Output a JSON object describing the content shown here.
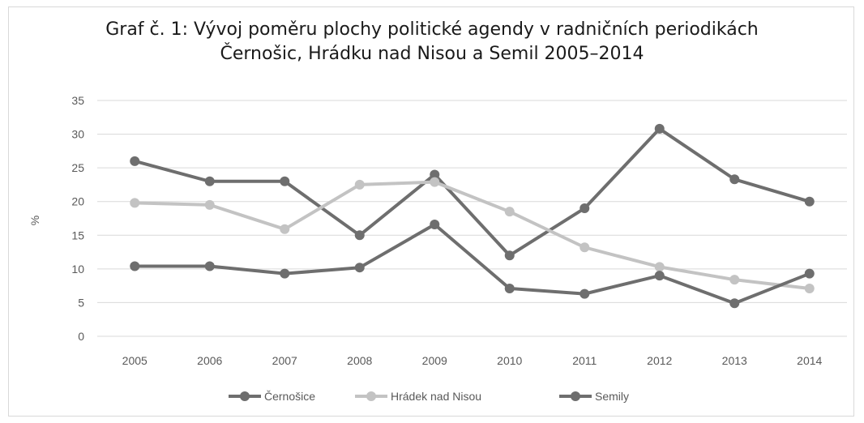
{
  "chart_data": {
    "type": "line",
    "title_line1": "Graf č. 1: Vývoj poměru plochy politické agendy v radničních periodikách",
    "title_line2": "Černošic, Hrádku nad Nisou a Semil 2005–2014",
    "ylabel": "%",
    "xlabel": "",
    "ylim": [
      0,
      35
    ],
    "yticks": [
      0,
      5,
      10,
      15,
      20,
      25,
      30,
      35
    ],
    "categories": [
      "2005",
      "2006",
      "2007",
      "2008",
      "2009",
      "2010",
      "2011",
      "2012",
      "2013",
      "2014"
    ],
    "grid": true,
    "legend_position": "bottom",
    "series": [
      {
        "name": "Černošice",
        "color": "#6e6e6e",
        "values": [
          26,
          23,
          23,
          15,
          24,
          12,
          19,
          30.8,
          23.3,
          20
        ]
      },
      {
        "name": "Hrádek nad Nisou",
        "color": "#c3c3c3",
        "values": [
          19.8,
          19.5,
          15.9,
          22.5,
          22.9,
          18.5,
          13.2,
          10.3,
          8.4,
          7.1
        ]
      },
      {
        "name": "Semily",
        "color": "#6e6e6e",
        "values": [
          10.4,
          10.4,
          9.3,
          10.2,
          16.6,
          7.1,
          6.3,
          9,
          4.9,
          9.3
        ]
      }
    ]
  }
}
